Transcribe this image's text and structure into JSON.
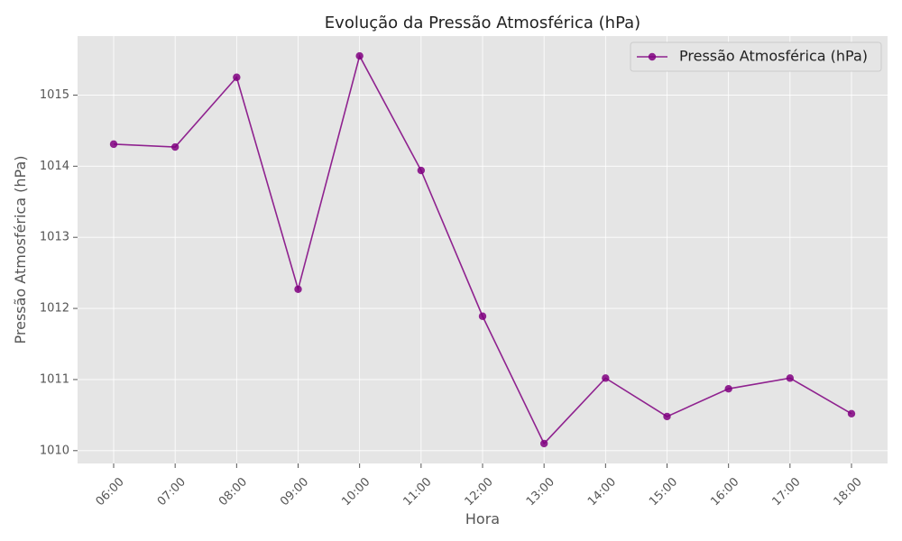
{
  "chart_data": {
    "type": "line",
    "title": "Evolução da Pressão Atmosférica (hPa)",
    "xlabel": "Hora",
    "ylabel": "Pressão Atmosférica (hPa)",
    "categories": [
      "06:00",
      "07:00",
      "08:00",
      "09:00",
      "10:00",
      "11:00",
      "12:00",
      "13:00",
      "14:00",
      "15:00",
      "16:00",
      "17:00",
      "18:00"
    ],
    "series": [
      {
        "name": "Pressão Atmosférica (hPa)",
        "values": [
          1014.31,
          1014.27,
          1015.25,
          1012.27,
          1015.55,
          1013.94,
          1011.89,
          1010.1,
          1011.02,
          1010.48,
          1010.87,
          1011.02,
          1010.52
        ],
        "color": "#800080"
      }
    ],
    "ylim": [
      1009.82,
      1015.83
    ],
    "yticks": [
      1010,
      1011,
      1012,
      1013,
      1014,
      1015
    ],
    "grid": true,
    "legend_position": "top-right",
    "background_color": "#e5e5e5",
    "grid_color": "#ffffff"
  }
}
